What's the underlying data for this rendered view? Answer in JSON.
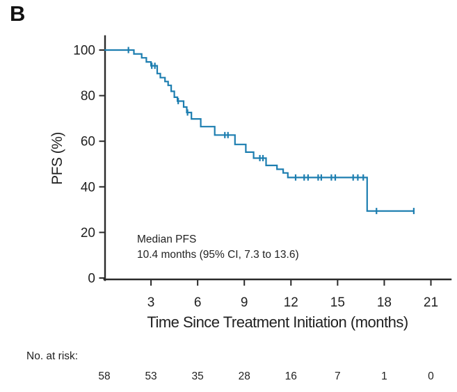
{
  "panel_label": "B",
  "chart_data": {
    "type": "line",
    "subtype": "kaplan-meier-step",
    "title": "",
    "xlabel": "Time Since Treatment Initiation (months)",
    "ylabel": "PFS (%)",
    "xlim": [
      0,
      22.3
    ],
    "ylim": [
      0,
      100
    ],
    "x_ticks": [
      3,
      6,
      9,
      12,
      15,
      18,
      21
    ],
    "y_ticks": [
      100,
      80,
      60,
      40,
      20,
      0
    ],
    "grid": false,
    "legend": "none",
    "line_color": "#1d7eb0",
    "axis_color": "#2a2a2a",
    "annotation": {
      "line1": "Median PFS",
      "line2": "10.4 months (95% CI, 7.3 to 13.6)"
    },
    "series": [
      {
        "name": "PFS",
        "steps": [
          [
            0.0,
            100.0
          ],
          [
            1.9,
            98.3
          ],
          [
            2.4,
            96.6
          ],
          [
            2.7,
            94.8
          ],
          [
            3.0,
            93.1
          ],
          [
            3.4,
            89.7
          ],
          [
            3.6,
            87.9
          ],
          [
            3.9,
            86.2
          ],
          [
            4.1,
            84.5
          ],
          [
            4.3,
            81.9
          ],
          [
            4.5,
            79.3
          ],
          [
            4.7,
            77.6
          ],
          [
            5.1,
            75.0
          ],
          [
            5.3,
            72.6
          ],
          [
            5.6,
            69.8
          ],
          [
            6.2,
            66.4
          ],
          [
            7.1,
            62.7
          ],
          [
            8.4,
            58.6
          ],
          [
            9.1,
            55.2
          ],
          [
            9.6,
            52.6
          ],
          [
            10.4,
            49.4
          ],
          [
            11.1,
            47.7
          ],
          [
            11.5,
            46.1
          ],
          [
            11.8,
            44.1
          ],
          [
            16.9,
            29.4
          ]
        ],
        "end_time": 19.9,
        "censor_marks": [
          [
            1.55,
            100.0
          ],
          [
            3.05,
            93.1
          ],
          [
            3.25,
            93.1
          ],
          [
            4.75,
            77.6
          ],
          [
            5.35,
            72.6
          ],
          [
            7.75,
            62.7
          ],
          [
            7.95,
            62.7
          ],
          [
            10.0,
            52.6
          ],
          [
            10.2,
            52.6
          ],
          [
            12.3,
            44.1
          ],
          [
            12.85,
            44.1
          ],
          [
            13.1,
            44.1
          ],
          [
            13.75,
            44.1
          ],
          [
            13.95,
            44.1
          ],
          [
            14.6,
            44.1
          ],
          [
            14.85,
            44.1
          ],
          [
            16.0,
            44.1
          ],
          [
            16.3,
            44.1
          ],
          [
            16.65,
            44.1
          ],
          [
            17.5,
            29.4
          ],
          [
            19.9,
            29.4
          ]
        ]
      }
    ]
  },
  "risk_table": {
    "label": "No. at risk:",
    "times": [
      0,
      3,
      6,
      9,
      12,
      15,
      18,
      21
    ],
    "counts": [
      "58",
      "53",
      "35",
      "28",
      "16",
      "7",
      "1",
      "0"
    ]
  }
}
